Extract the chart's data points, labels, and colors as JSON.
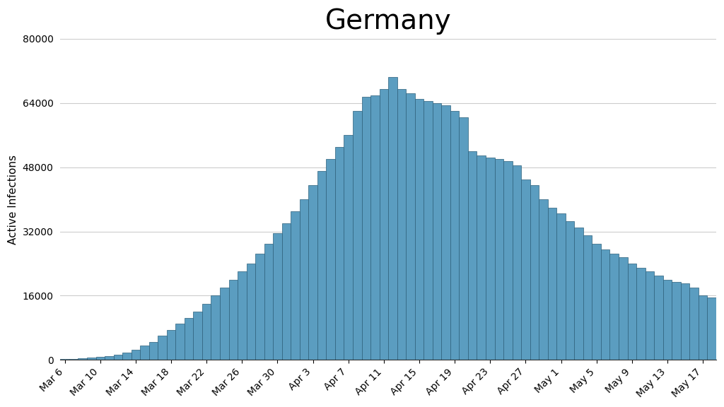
{
  "title": "Germany",
  "ylabel": "Active Infections",
  "bar_color": "#5b9dc0",
  "bar_edge_color": "#2c5f7a",
  "background_color": "#ffffff",
  "ylim": [
    0,
    80000
  ],
  "yticks": [
    0,
    16000,
    32000,
    48000,
    64000,
    80000
  ],
  "title_fontsize": 28,
  "label_fontsize": 11,
  "tick_fontsize": 10,
  "values": [
    200,
    300,
    400,
    600,
    800,
    1000,
    1300,
    1800,
    2500,
    3500,
    4500,
    6000,
    7500,
    9000,
    10500,
    12000,
    14000,
    16000,
    18000,
    20000,
    22000,
    24000,
    26500,
    29000,
    31500,
    34000,
    37000,
    40000,
    43500,
    47000,
    50000,
    53000,
    56000,
    62000,
    65500,
    66000,
    67500,
    70500,
    67500,
    66500,
    65000,
    64500,
    64000,
    63500,
    62000,
    60500,
    52000,
    51000,
    50500,
    50000,
    49500,
    48500,
    45000,
    43500,
    40000,
    38000,
    36500,
    34500,
    33000,
    31000,
    29000,
    27500,
    26500,
    25500,
    24000,
    23000,
    22000,
    21000,
    20000,
    19500,
    19000,
    18000,
    16000,
    15500
  ],
  "xtick_labels": [
    "Mar 6",
    "Mar 10",
    "Mar 14",
    "Mar 18",
    "Mar 22",
    "Mar 26",
    "Mar 30",
    "Apr 3",
    "Apr 7",
    "Apr 11",
    "Apr 15",
    "Apr 19",
    "Apr 23",
    "Apr 27",
    "May 1",
    "May 5",
    "May 9",
    "May 13",
    "May 17"
  ],
  "xtick_positions": [
    0,
    4,
    8,
    12,
    16,
    20,
    24,
    28,
    32,
    36,
    40,
    44,
    48,
    52,
    56,
    60,
    64,
    68,
    72
  ]
}
